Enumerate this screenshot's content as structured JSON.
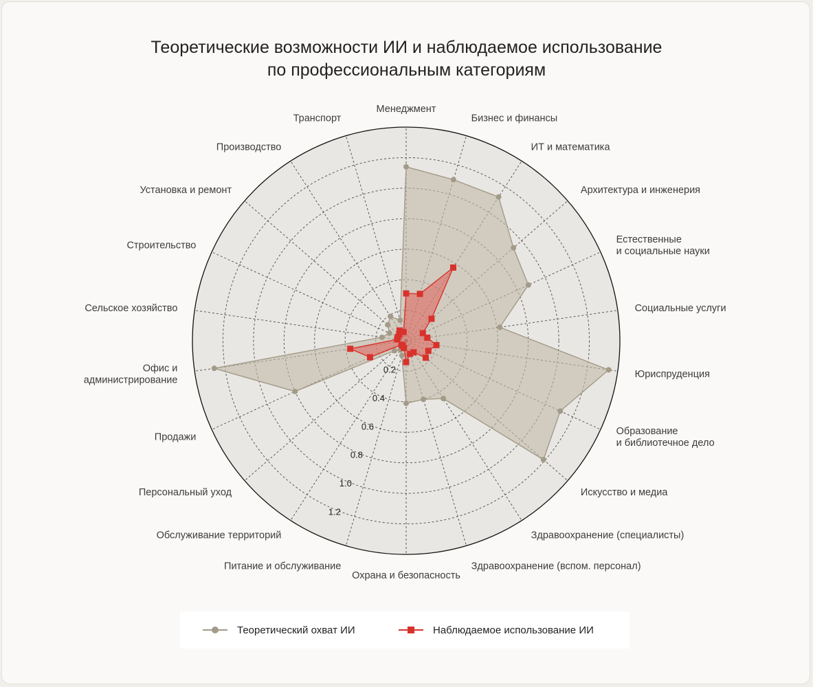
{
  "title": {
    "line1": "Теоретические возможности ИИ и наблюдаемое использование",
    "line2": "по профессиональным категориям"
  },
  "colors": {
    "theoretical": "#a39a88",
    "theoretical_fill": "#c2b9a8",
    "observed": "#d8322c",
    "observed_fill": "#e06058",
    "plot_bg": "#e8e7e3",
    "grid": "#4a4a4a"
  },
  "legend": {
    "theoretical_label": "Теоретический охват ИИ",
    "observed_label": "Наблюдаемое использование ИИ"
  },
  "chart_data": {
    "type": "radar",
    "title": "Теоретические возможности ИИ и наблюдаемое использование по профессиональным категориям",
    "categories": [
      "Менеджмент",
      "Бизнес и финансы",
      "ИТ и математика",
      "Архитектура и инженерия",
      "Естественные\nи социальные науки",
      "Социальные услуги",
      "Юриспруденция",
      "Образование\nи библиотечное дело",
      "Искусство и медиа",
      "Здравоохранение (специалисты)",
      "Здравоохранение (вспом. персонал)",
      "Охрана и безопасность",
      "Питание и обслуживание",
      "Обслуживание территорий",
      "Персональный уход",
      "Продажи",
      "Офис и\nадминистрирование",
      "Сельское хозяйство",
      "Строительство",
      "Установка и ремонт",
      "Производство",
      "Транспорт"
    ],
    "rlim": [
      0,
      1.4
    ],
    "rticks": [
      0.2,
      0.4,
      0.6,
      0.8,
      1.0,
      1.2
    ],
    "rtick_labels": [
      "0.2",
      "0.4",
      "0.6",
      "0.8",
      "1.0",
      "1.2"
    ],
    "grid": true,
    "series": [
      {
        "name": "Теоретический охват ИИ",
        "values": [
          1.14,
          1.1,
          1.12,
          0.93,
          0.88,
          0.62,
          1.34,
          1.11,
          1.19,
          0.45,
          0.4,
          0.41,
          0.1,
          0.07,
          0.1,
          0.8,
          1.27,
          0.16,
          0.12,
          0.16,
          0.19,
          0.14
        ],
        "marker": "circle"
      },
      {
        "name": "Наблюдаемое использование ИИ",
        "values": [
          0.31,
          0.32,
          0.57,
          0.22,
          0.12,
          0.14,
          0.2,
          0.16,
          0.17,
          0.09,
          0.09,
          0.14,
          0.05,
          0.04,
          0.04,
          0.26,
          0.37,
          0.06,
          0.06,
          0.06,
          0.08,
          0.06
        ],
        "marker": "square"
      }
    ],
    "legend_position": "bottom"
  }
}
